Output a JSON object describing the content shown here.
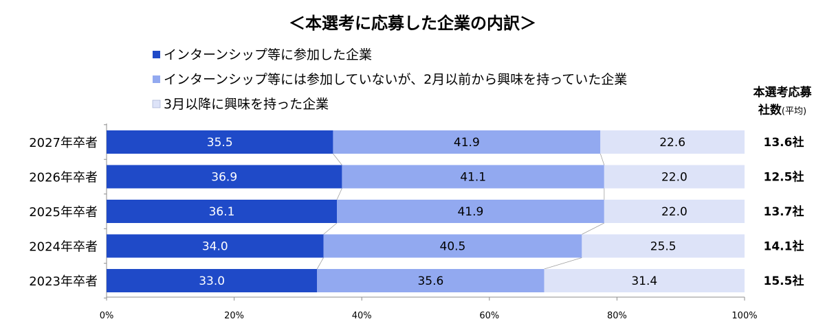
{
  "chart_data": {
    "type": "bar",
    "orientation": "horizontal",
    "stacked": true,
    "title": "＜本選考に応募した企業の内訳＞",
    "categories": [
      "2027年卒者",
      "2026年卒者",
      "2025年卒者",
      "2024年卒者",
      "2023年卒者"
    ],
    "series": [
      {
        "name": "インターンシップ等に参加した企業",
        "color": "#1f4ac8",
        "values": [
          35.5,
          36.9,
          36.1,
          34.0,
          33.0
        ]
      },
      {
        "name": "インターンシップ等には参加していないが、2月以前から興味を持っていた企業",
        "color": "#92a9f0",
        "values": [
          41.9,
          41.1,
          41.9,
          40.5,
          35.6
        ]
      },
      {
        "name": "3月以降に興味を持った企業",
        "color": "#dde3f8",
        "values": [
          22.6,
          22.0,
          22.0,
          25.5,
          31.4
        ]
      }
    ],
    "value_labels": [
      [
        "35.5",
        "41.9",
        "22.6"
      ],
      [
        "36.9",
        "41.1",
        "22.0"
      ],
      [
        "36.1",
        "41.9",
        "22.0"
      ],
      [
        "34.0",
        "40.5",
        "25.5"
      ],
      [
        "33.0",
        "35.6",
        "31.4"
      ]
    ],
    "xlim": [
      0,
      100
    ],
    "x_ticks": [
      "0%",
      "20%",
      "40%",
      "60%",
      "80%",
      "100%"
    ],
    "legend_position": "top",
    "side_column": {
      "header_line1": "本選考応募",
      "header_line2": "社数",
      "header_line2_suffix": "(平均)",
      "values": [
        "13.6社",
        "12.5社",
        "13.7社",
        "14.1社",
        "15.5社"
      ]
    }
  }
}
